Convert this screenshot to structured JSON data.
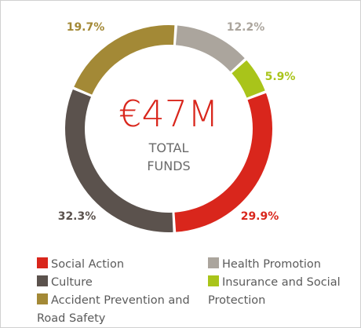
{
  "chart_data": {
    "type": "donut",
    "center_title": "€47M",
    "center_subtitle": [
      "TOTAL",
      "FUNDS"
    ],
    "categories": [
      "Health Promotion",
      "Insurance and Social Protection",
      "Social Action",
      "Culture",
      "Accident Prevention and Road Safety"
    ],
    "values": [
      12.2,
      5.9,
      29.9,
      32.3,
      19.7
    ],
    "value_labels": [
      "12.2%",
      "5.9%",
      "29.9%",
      "32.3%",
      "19.7%"
    ],
    "colors": [
      "#aba59d",
      "#a9c41a",
      "#d9261c",
      "#5b524d",
      "#a38936"
    ],
    "legend": "bottom"
  }
}
